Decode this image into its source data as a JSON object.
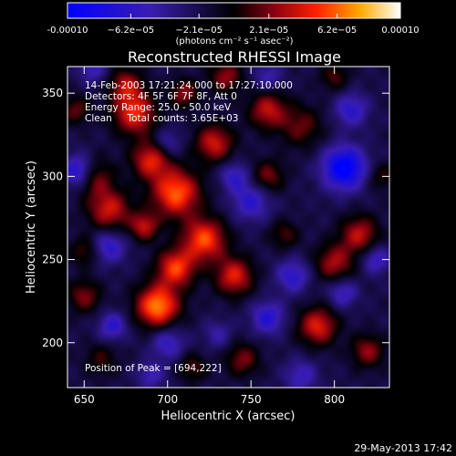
{
  "chart_data": {
    "type": "heatmap",
    "title": "Reconstructed RHESSI Image",
    "xlabel": "Heliocentric X (arcsec)",
    "ylabel": "Heliocentric Y (arcsec)",
    "xlim": [
      640,
      833
    ],
    "ylim": [
      173,
      366
    ],
    "xticks": [
      650,
      700,
      750,
      800
    ],
    "yticks": [
      200,
      250,
      300,
      350
    ],
    "colorbar": {
      "range": [
        -0.0001,
        0.0001
      ],
      "tick_values": [
        -0.0001,
        -6.2e-05,
        -2.1e-05,
        2.1e-05,
        6.2e-05,
        0.0001
      ],
      "tick_labels": [
        "-0.00010",
        "−6.2e−05",
        "−2.1e−05",
        "2.1e−05",
        "6.2e−05",
        "0.00010"
      ],
      "units_label": "(photons cm⁻² s⁻¹ asec⁻²)"
    },
    "annotations": [
      "14-Feb-2003 17:21:24.000 to 17:27:10.000",
      "Detectors: 4F 5F 6F 7F 8F, Att 0",
      "Energy Range: 25.0 - 50.0 keV",
      "Clean     Total counts: 3.65E+03"
    ],
    "peak_label": "Position of Peak = [694,222]",
    "peak": [
      694,
      222
    ],
    "blobs": [
      [
        694,
        222,
        1.0,
        9
      ],
      [
        705,
        290,
        0.9,
        10
      ],
      [
        680,
        338,
        0.75,
        9
      ],
      [
        722,
        262,
        0.85,
        9
      ],
      [
        705,
        245,
        0.8,
        8
      ],
      [
        740,
        240,
        0.7,
        8
      ],
      [
        655,
        300,
        0.55,
        8
      ],
      [
        665,
        280,
        0.65,
        9
      ],
      [
        650,
        228,
        0.45,
        7
      ],
      [
        760,
        340,
        0.6,
        8
      ],
      [
        780,
        330,
        0.4,
        9
      ],
      [
        815,
        265,
        0.6,
        8
      ],
      [
        800,
        248,
        0.55,
        8
      ],
      [
        790,
        210,
        0.7,
        8
      ],
      [
        820,
        195,
        0.5,
        7
      ],
      [
        745,
        190,
        0.45,
        7
      ],
      [
        715,
        185,
        0.35,
        6
      ],
      [
        660,
        190,
        0.3,
        7
      ],
      [
        675,
        355,
        0.55,
        7
      ],
      [
        735,
        360,
        0.5,
        7
      ],
      [
        760,
        300,
        0.45,
        7
      ],
      [
        690,
        310,
        0.7,
        8
      ],
      [
        645,
        340,
        0.4,
        6
      ],
      [
        828,
        300,
        0.3,
        6
      ],
      [
        728,
        320,
        0.65,
        8
      ],
      [
        770,
        265,
        0.35,
        6
      ],
      [
        650,
        255,
        0.35,
        6
      ],
      [
        686,
        270,
        0.6,
        6
      ],
      [
        710,
        350,
        0.5,
        6
      ],
      [
        800,
        360,
        0.35,
        6
      ],
      [
        806,
        305,
        -0.95,
        9
      ],
      [
        647,
        303,
        -0.75,
        7
      ],
      [
        665,
        258,
        -0.5,
        7
      ],
      [
        700,
        200,
        -0.45,
        7
      ],
      [
        750,
        285,
        -0.5,
        8
      ],
      [
        775,
        240,
        -0.5,
        7
      ],
      [
        805,
        230,
        -0.45,
        6
      ],
      [
        760,
        215,
        -0.55,
        7
      ],
      [
        810,
        340,
        -0.5,
        7
      ],
      [
        740,
        300,
        -0.45,
        6
      ],
      [
        667,
        210,
        -0.5,
        6
      ],
      [
        700,
        320,
        -0.35,
        6
      ],
      [
        730,
        205,
        -0.3,
        6
      ],
      [
        655,
        365,
        -0.4,
        6
      ],
      [
        780,
        180,
        -0.4,
        7
      ],
      [
        825,
        250,
        -0.45,
        6
      ],
      [
        760,
        360,
        -0.35,
        6
      ],
      [
        690,
        180,
        -0.35,
        6
      ]
    ]
  },
  "footer_timestamp": "29-May-2013 17:42"
}
